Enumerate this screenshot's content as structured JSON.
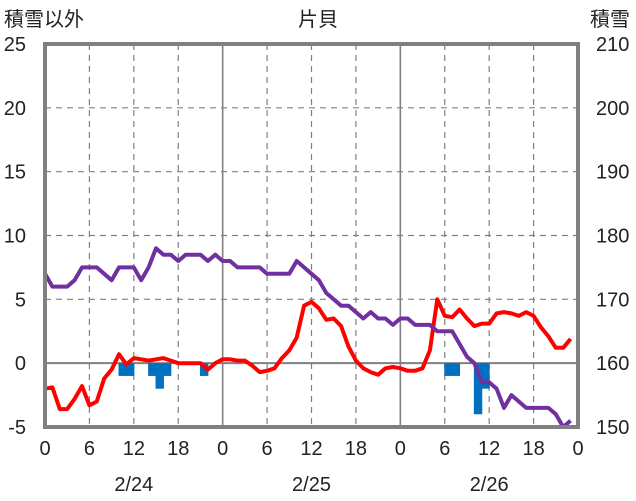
{
  "chart_data": {
    "type": "line",
    "title": "片貝",
    "left_axis_label": "積雪以外",
    "right_axis_label": "積雪",
    "y_left": {
      "min": -5,
      "max": 25,
      "ticks": [
        25,
        20,
        15,
        10,
        5,
        0,
        -5
      ]
    },
    "y_right": {
      "min": 150,
      "max": 210,
      "ticks": [
        210,
        200,
        190,
        180,
        170,
        160,
        150
      ]
    },
    "x_hour_ticks": [
      "0",
      "6",
      "12",
      "18",
      "0",
      "6",
      "12",
      "18",
      "0",
      "6",
      "12",
      "18",
      "0"
    ],
    "date_labels": [
      "2/24",
      "2/25",
      "2/26"
    ],
    "grid": true,
    "series": [
      {
        "key": "temperature",
        "axis": "left",
        "color": "#ff0000",
        "values": [
          -2,
          -1.9,
          -3.6,
          -3.6,
          -2.8,
          -1.8,
          -3.3,
          -3,
          -1.2,
          -0.5,
          0.7,
          -0.1,
          0.4,
          0.3,
          0.2,
          0.3,
          0.4,
          0.2,
          0,
          0,
          0,
          0,
          -0.5,
          0,
          0.3,
          0.3,
          0.2,
          0.2,
          -0.2,
          -0.7,
          -0.6,
          -0.4,
          0.4,
          1,
          2,
          4.5,
          4.8,
          4.3,
          3.4,
          3.5,
          2.9,
          1.3,
          0.2,
          -0.4,
          -0.7,
          -0.9,
          -0.4,
          -0.3,
          -0.4,
          -0.6,
          -0.6,
          -0.4,
          1,
          5,
          3.7,
          3.6,
          4.2,
          3.5,
          2.9,
          3.1,
          3.1,
          3.9,
          4,
          3.9,
          3.7,
          4,
          3.7,
          2.8,
          2.1,
          1.2,
          1.2,
          1.9
        ]
      },
      {
        "key": "snow_depth",
        "axis": "right",
        "color": "#7030a0",
        "values": [
          174,
          172,
          172,
          172,
          173,
          175,
          175,
          175,
          174,
          173,
          175,
          175,
          175,
          173,
          175,
          178,
          177,
          177,
          176,
          177,
          177,
          177,
          176,
          177,
          176,
          176,
          175,
          175,
          175,
          175,
          174,
          174,
          174,
          174,
          176,
          175,
          174,
          173,
          171,
          170,
          169,
          169,
          168,
          167,
          168,
          167,
          167,
          166,
          167,
          167,
          166,
          166,
          166,
          165,
          165,
          165,
          163,
          161,
          160,
          157,
          157,
          156,
          153,
          155,
          154,
          153,
          153,
          153,
          153,
          152,
          150,
          151
        ]
      },
      {
        "key": "precipitation",
        "axis": "left",
        "type": "bar",
        "color": "#0070c0",
        "values": [
          0,
          0,
          0,
          0,
          0,
          0,
          0,
          0,
          0,
          0,
          -1,
          -1,
          0,
          0,
          -1,
          -2,
          -1,
          0,
          0,
          0,
          0,
          -1,
          0,
          0,
          0,
          0,
          0,
          0,
          0,
          0,
          0,
          0,
          0,
          0,
          0,
          0,
          0,
          0,
          0,
          0,
          0,
          0,
          0,
          0,
          0,
          0,
          0,
          0,
          0,
          0,
          0,
          0,
          0,
          0,
          -1,
          -1,
          0,
          0,
          -4,
          -2,
          0,
          0,
          0,
          0,
          0,
          0,
          0,
          0,
          0,
          0,
          0,
          0
        ]
      }
    ]
  }
}
